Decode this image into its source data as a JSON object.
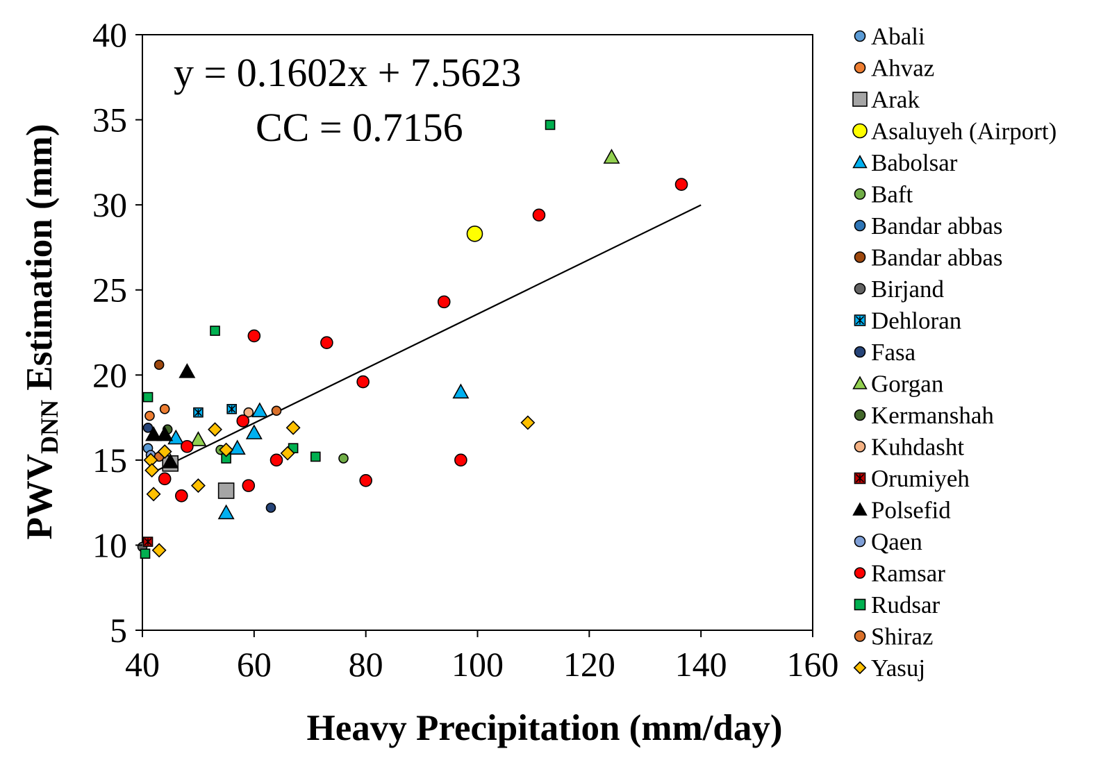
{
  "chart_data": {
    "type": "scatter",
    "xlabel": "Heavy Precipitation (mm/day)",
    "ylabel": {
      "main": "PWV",
      "sub": "DNN",
      "rest": " Estimation  (mm)"
    },
    "xlim": [
      40,
      160
    ],
    "ylim": [
      5,
      40
    ],
    "xticks": [
      40,
      60,
      80,
      100,
      120,
      140,
      160
    ],
    "yticks": [
      5,
      10,
      15,
      20,
      25,
      30,
      35,
      40
    ],
    "grid": false,
    "legend_position": "right",
    "annotations": [
      "y = 0.1602x + 7.5623",
      "CC = 0.7156"
    ],
    "trendline": {
      "slope": 0.1602,
      "intercept": 7.5623,
      "x_range": [
        42,
        140
      ]
    },
    "series": [
      {
        "name": "Abali",
        "marker": "circle",
        "color": "#5b9bd5",
        "size": "small",
        "x": [
          41
        ],
        "y": [
          15.7
        ]
      },
      {
        "name": "Ahvaz",
        "marker": "circle",
        "color": "#ed7d31",
        "size": "small",
        "x": [
          41.3,
          44
        ],
        "y": [
          17.6,
          18.0
        ]
      },
      {
        "name": "Arak",
        "marker": "square",
        "color": "#a5a5a5",
        "size": "large",
        "x": [
          45,
          55
        ],
        "y": [
          14.8,
          13.2
        ]
      },
      {
        "name": "Asaluyeh (Airport)",
        "marker": "circle",
        "color": "#ffff00",
        "size": "large",
        "x": [
          99.5
        ],
        "y": [
          28.3
        ]
      },
      {
        "name": "Babolsar",
        "marker": "triangle",
        "color": "#00b0f0",
        "size": "medium",
        "x": [
          46,
          55,
          57,
          60,
          61,
          97
        ],
        "y": [
          16.3,
          11.9,
          15.7,
          16.6,
          17.9,
          19.0
        ]
      },
      {
        "name": "Baft",
        "marker": "circle",
        "color": "#70ad47",
        "size": "small",
        "x": [
          54,
          76
        ],
        "y": [
          15.6,
          15.1
        ]
      },
      {
        "name": "Bandar abbas",
        "marker": "circle",
        "color": "#2e75b6",
        "size": "small",
        "x": [],
        "y": []
      },
      {
        "name": "Bandar abbas",
        "marker": "circle",
        "color": "#9e480e",
        "size": "small",
        "x": [
          43
        ],
        "y": [
          20.6
        ]
      },
      {
        "name": "Birjand",
        "marker": "circle",
        "color": "#636363",
        "size": "small",
        "x": [
          40
        ],
        "y": [
          9.9
        ]
      },
      {
        "name": "Dehloran",
        "marker": "starsquare",
        "color": "#00b0f0",
        "size": "small",
        "x": [
          50,
          56
        ],
        "y": [
          17.8,
          18.0
        ]
      },
      {
        "name": "Fasa",
        "marker": "circle",
        "color": "#264478",
        "size": "small",
        "x": [
          41,
          63
        ],
        "y": [
          16.9,
          12.2
        ]
      },
      {
        "name": "Gorgan",
        "marker": "triangle",
        "color": "#92d050",
        "size": "medium",
        "x": [
          50,
          124
        ],
        "y": [
          16.2,
          32.8
        ]
      },
      {
        "name": "Kermanshah",
        "marker": "circle",
        "color": "#43682b",
        "size": "small",
        "x": [
          44.5
        ],
        "y": [
          16.8
        ]
      },
      {
        "name": "Kuhdasht",
        "marker": "circle",
        "color": "#f4b183",
        "size": "small",
        "x": [
          59
        ],
        "y": [
          17.8
        ]
      },
      {
        "name": "Orumiyeh",
        "marker": "starsquare",
        "color": "#c00000",
        "size": "small",
        "x": [
          41
        ],
        "y": [
          10.2
        ]
      },
      {
        "name": "Polsefid",
        "marker": "triangle",
        "color": "#000000",
        "size": "medium",
        "x": [
          42,
          44,
          45,
          48
        ],
        "y": [
          16.5,
          16.5,
          14.9,
          20.2
        ]
      },
      {
        "name": "Qaen",
        "marker": "circle",
        "color": "#7f9fd6",
        "size": "small",
        "x": [
          41.5
        ],
        "y": [
          15.3
        ]
      },
      {
        "name": "Ramsar",
        "marker": "circle",
        "color": "#ff0000",
        "size": "medium",
        "x": [
          44,
          47,
          48,
          58,
          59,
          60,
          64,
          73,
          79.5,
          80,
          94,
          97,
          111,
          136.5
        ],
        "y": [
          13.9,
          12.9,
          15.8,
          17.3,
          13.5,
          22.3,
          15.0,
          21.9,
          19.6,
          13.8,
          24.3,
          15.0,
          29.4,
          31.2
        ]
      },
      {
        "name": "Rudsar",
        "marker": "square",
        "color": "#00b050",
        "size": "small",
        "x": [
          40.5,
          41,
          53,
          55,
          67,
          71,
          113
        ],
        "y": [
          9.5,
          18.7,
          22.6,
          15.1,
          15.7,
          15.2,
          34.7
        ]
      },
      {
        "name": "Shiraz",
        "marker": "circle",
        "color": "#d9702a",
        "size": "small",
        "x": [
          43,
          64
        ],
        "y": [
          15.2,
          17.9
        ]
      },
      {
        "name": "Yasuj",
        "marker": "diamond",
        "color": "#ffc000",
        "size": "medium",
        "x": [
          41.5,
          41.7,
          42,
          43,
          44,
          50,
          53,
          55,
          66,
          67,
          109
        ],
        "y": [
          15.0,
          14.4,
          13.0,
          9.7,
          15.5,
          13.5,
          16.8,
          15.6,
          15.4,
          16.9,
          17.2
        ]
      }
    ]
  }
}
